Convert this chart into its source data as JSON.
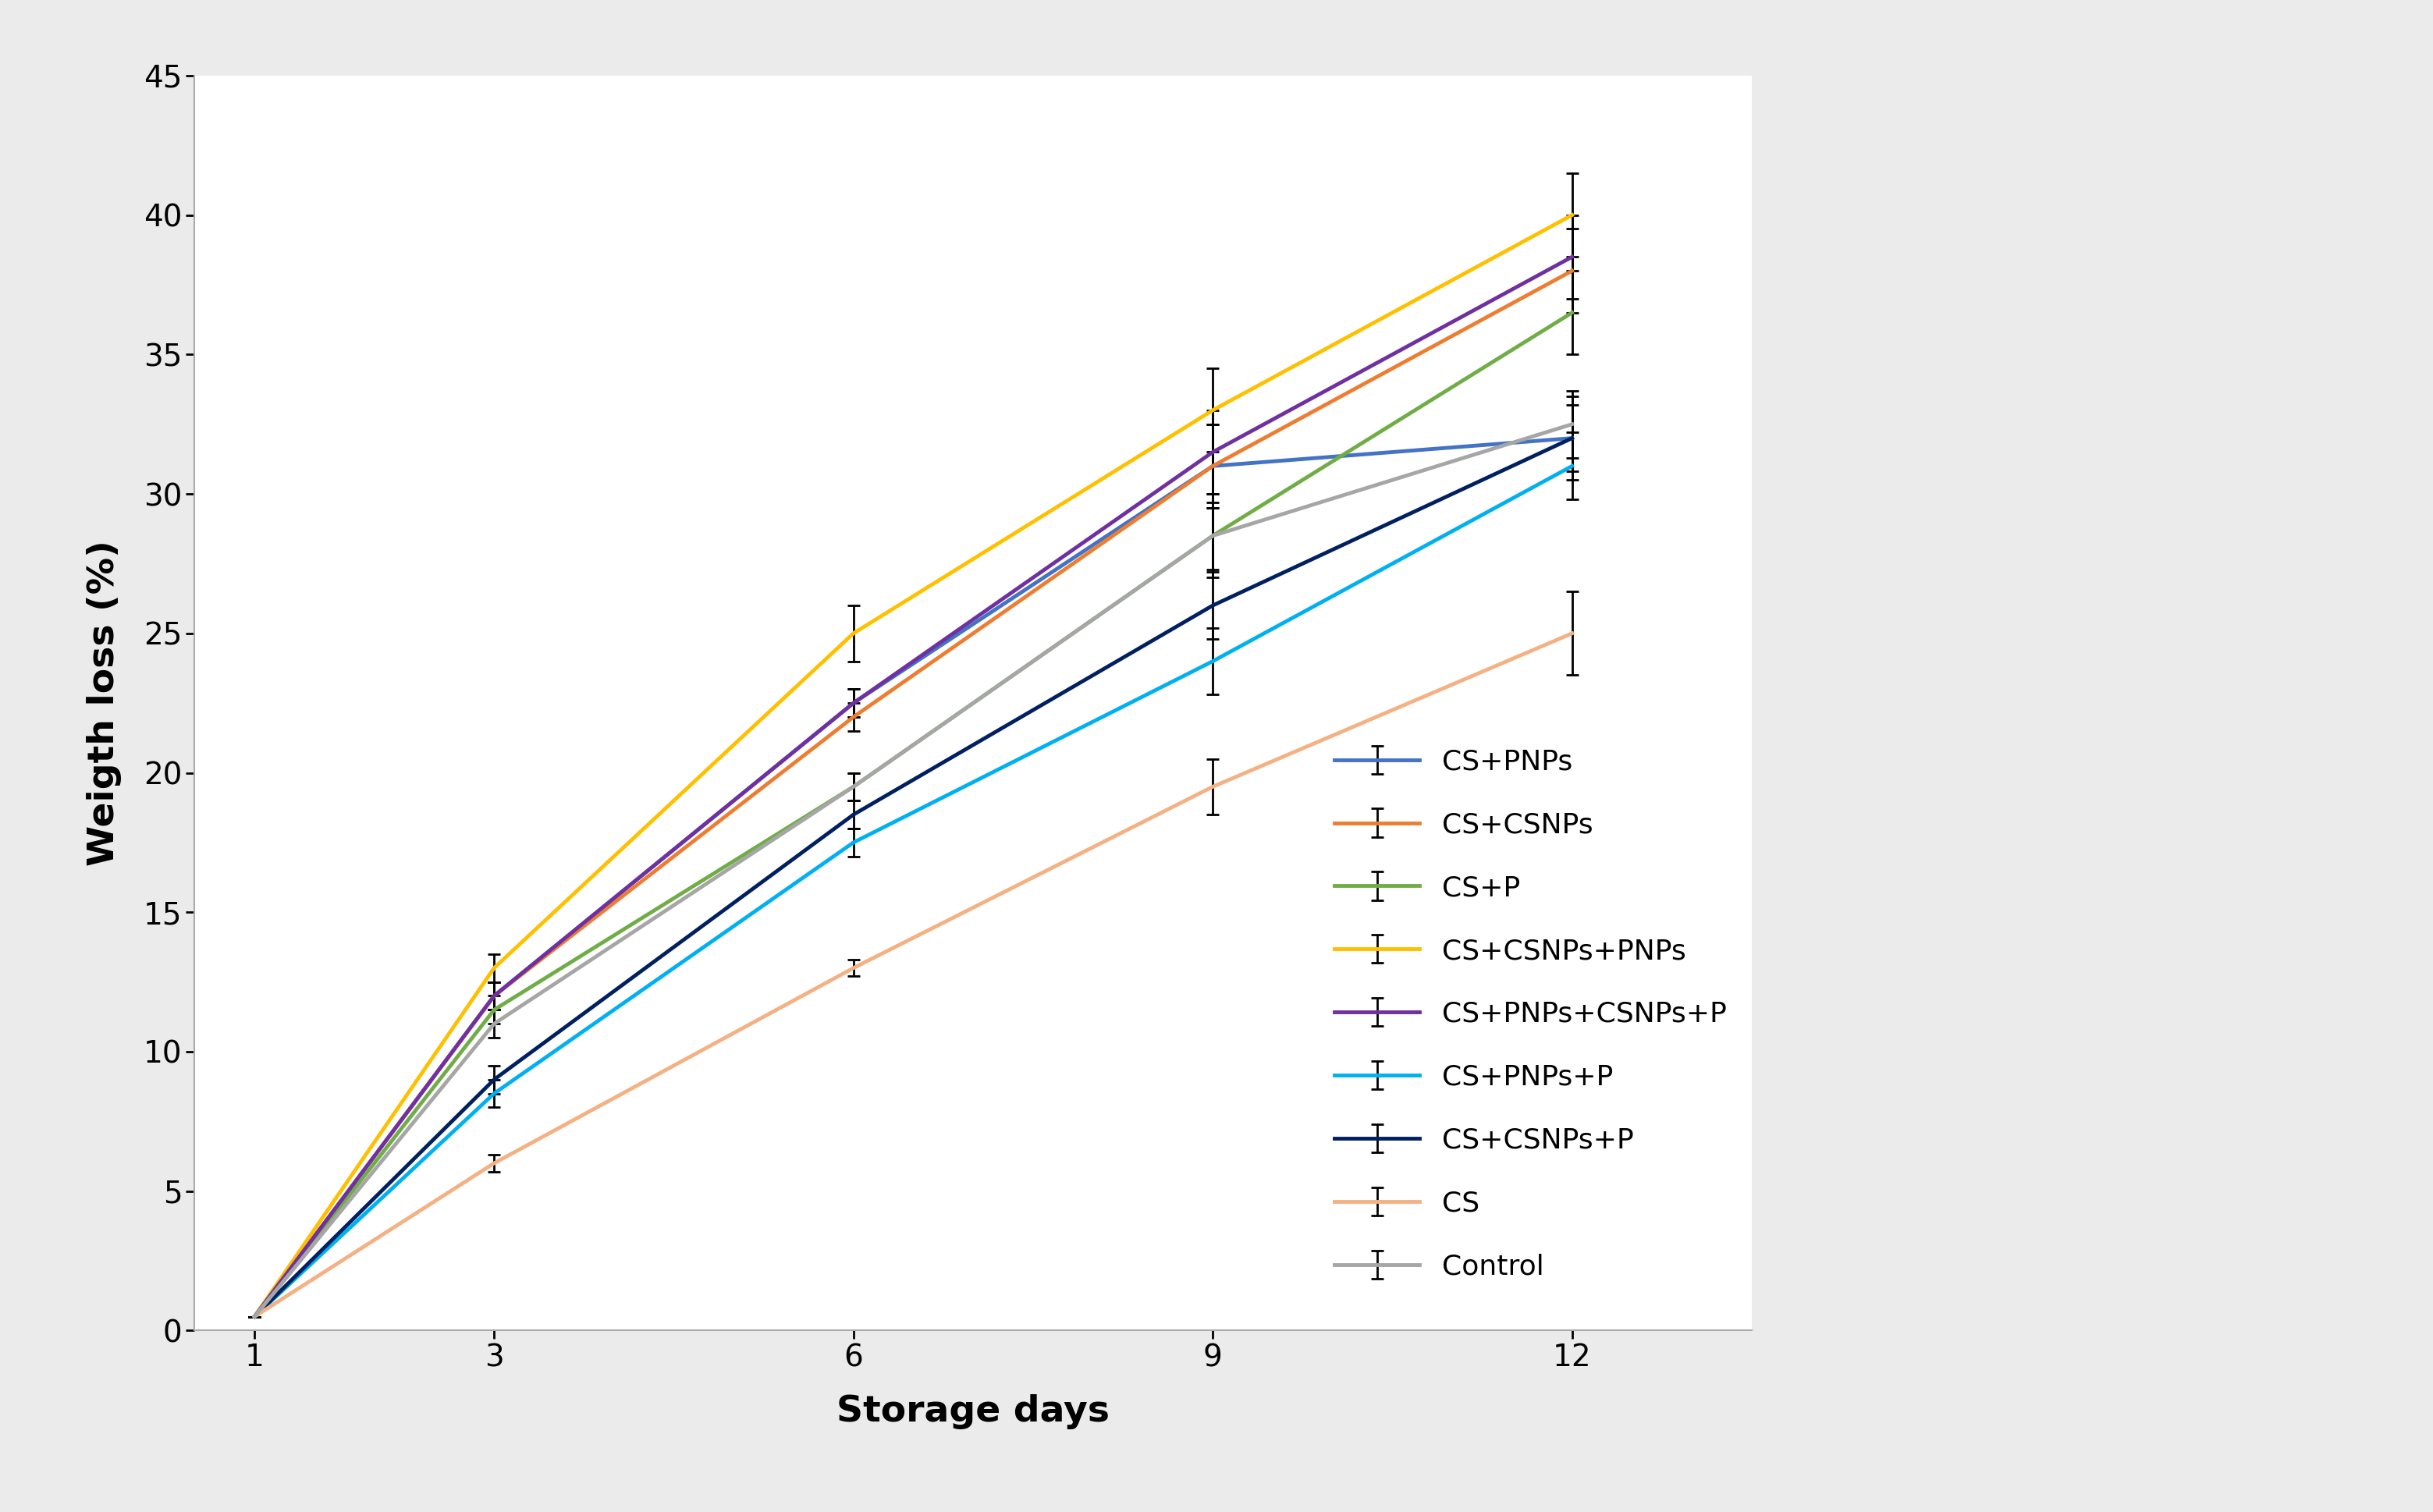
{
  "series": [
    {
      "label": "CS+PNPs",
      "color": "#4472C4",
      "x": [
        1,
        3,
        6,
        9,
        12
      ],
      "y": [
        0.5,
        12.0,
        22.5,
        31.0,
        32.0
      ],
      "yerr": [
        0,
        0.5,
        0.5,
        1.5,
        1.5
      ]
    },
    {
      "label": "CS+CSNPs",
      "color": "#ED7D31",
      "x": [
        1,
        3,
        6,
        9,
        12
      ],
      "y": [
        0.5,
        12.0,
        22.0,
        31.0,
        38.0
      ],
      "yerr": [
        0,
        0.5,
        0.5,
        1.5,
        1.5
      ]
    },
    {
      "label": "CS+P",
      "color": "#70AD47",
      "x": [
        1,
        3,
        6,
        9,
        12
      ],
      "y": [
        0.5,
        11.5,
        19.5,
        28.5,
        36.5
      ],
      "yerr": [
        0,
        0.5,
        0.5,
        1.5,
        1.5
      ]
    },
    {
      "label": "CS+CSNPs+PNPs",
      "color": "#FFC000",
      "x": [
        1,
        3,
        6,
        9,
        12
      ],
      "y": [
        0.5,
        13.0,
        25.0,
        33.0,
        40.0
      ],
      "yerr": [
        0,
        0.5,
        1.0,
        1.5,
        1.5
      ]
    },
    {
      "label": "CS+PNPs+CSNPs+P",
      "color": "#7030A0",
      "x": [
        1,
        3,
        6,
        9,
        12
      ],
      "y": [
        0.5,
        12.0,
        22.5,
        31.5,
        38.5
      ],
      "yerr": [
        0,
        0.5,
        0.5,
        1.5,
        1.5
      ]
    },
    {
      "label": "CS+PNPs+P",
      "color": "#00B0F0",
      "x": [
        1,
        3,
        6,
        9,
        12
      ],
      "y": [
        0.5,
        8.5,
        17.5,
        24.0,
        31.0
      ],
      "yerr": [
        0,
        0.5,
        0.5,
        1.2,
        1.2
      ]
    },
    {
      "label": "CS+CSNPs+P",
      "color": "#002060",
      "x": [
        1,
        3,
        6,
        9,
        12
      ],
      "y": [
        0.5,
        9.0,
        18.5,
        26.0,
        32.0
      ],
      "yerr": [
        0,
        0.5,
        0.5,
        1.2,
        1.2
      ]
    },
    {
      "label": "CS",
      "color": "#F4B183",
      "x": [
        1,
        3,
        6,
        9,
        12
      ],
      "y": [
        0.5,
        6.0,
        13.0,
        19.5,
        25.0
      ],
      "yerr": [
        0,
        0.3,
        0.3,
        1.0,
        1.5
      ]
    },
    {
      "label": "Control",
      "color": "#A6A6A6",
      "x": [
        1,
        3,
        6,
        9,
        12
      ],
      "y": [
        0.5,
        11.0,
        19.5,
        28.5,
        32.5
      ],
      "yerr": [
        0,
        0.5,
        0.5,
        1.2,
        1.2
      ]
    }
  ],
  "xlabel": "Storage days",
  "ylabel": "Weigth loss (%)",
  "xlim": [
    0.5,
    13.5
  ],
  "ylim": [
    0,
    45
  ],
  "xticks": [
    1,
    3,
    6,
    9,
    12
  ],
  "yticks": [
    0,
    5,
    10,
    15,
    20,
    25,
    30,
    35,
    40,
    45
  ],
  "background_color": "#ebebeb",
  "plot_bg_color": "#ffffff",
  "linewidth": 3.5,
  "xlabel_fontsize": 34,
  "ylabel_fontsize": 34,
  "tick_fontsize": 28,
  "legend_fontsize": 26
}
